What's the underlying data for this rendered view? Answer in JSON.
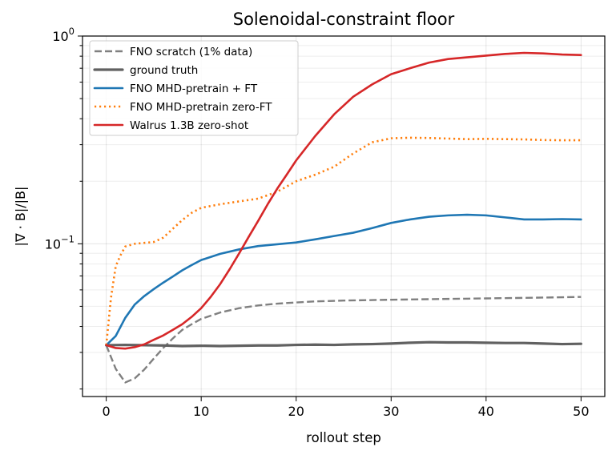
{
  "chart_data": {
    "type": "line",
    "title": "Solenoidal-constraint floor",
    "xlabel": "rollout step",
    "ylabel": "|∇ · B|/|B|",
    "xlim": [
      -2.5,
      52.5
    ],
    "ylim": [
      0.0184,
      1.0
    ],
    "yscale": "log",
    "grid": true,
    "legend_position": "top-left",
    "x_ticks": [
      {
        "value": 0,
        "label": "0"
      },
      {
        "value": 10,
        "label": "10"
      },
      {
        "value": 20,
        "label": "20"
      },
      {
        "value": 30,
        "label": "30"
      },
      {
        "value": 40,
        "label": "40"
      },
      {
        "value": 50,
        "label": "50"
      }
    ],
    "y_ticks": [
      {
        "value": 0.1,
        "base": "10",
        "exp": "−1"
      },
      {
        "value": 1.0,
        "base": "10",
        "exp": "0"
      }
    ],
    "series": [
      {
        "name": "FNO scratch (1% data)",
        "color": "#808080",
        "style": "dashed",
        "x": [
          0,
          1,
          2,
          3,
          4,
          5,
          6,
          7,
          8,
          9,
          10,
          12,
          14,
          16,
          18,
          20,
          22,
          25,
          30,
          35,
          40,
          45,
          50
        ],
        "y": [
          0.0325,
          0.025,
          0.0215,
          0.0225,
          0.0248,
          0.028,
          0.0315,
          0.035,
          0.0385,
          0.041,
          0.0435,
          0.0467,
          0.049,
          0.0505,
          0.0515,
          0.0522,
          0.0528,
          0.0533,
          0.0538,
          0.0542,
          0.0546,
          0.055,
          0.0555
        ]
      },
      {
        "name": "ground truth",
        "color": "#616161",
        "style": "solid-thick",
        "x": [
          0,
          2,
          4,
          6,
          8,
          10,
          12,
          14,
          16,
          18,
          20,
          22,
          24,
          26,
          28,
          30,
          32,
          34,
          36,
          38,
          40,
          42,
          44,
          46,
          48,
          50
        ],
        "y": [
          0.0325,
          0.0326,
          0.0325,
          0.0324,
          0.0322,
          0.0323,
          0.0322,
          0.0323,
          0.0324,
          0.0324,
          0.0326,
          0.0327,
          0.0326,
          0.0328,
          0.0329,
          0.0331,
          0.0334,
          0.0336,
          0.0335,
          0.0335,
          0.0334,
          0.0333,
          0.0333,
          0.0331,
          0.0329,
          0.033
        ]
      },
      {
        "name": "FNO MHD-pretrain + FT",
        "color": "#1f77b4",
        "style": "solid",
        "x": [
          0,
          1,
          2,
          3,
          4,
          5,
          6,
          7,
          8,
          9,
          10,
          12,
          14,
          16,
          18,
          20,
          22,
          24,
          26,
          28,
          30,
          32,
          34,
          36,
          38,
          40,
          42,
          44,
          46,
          48,
          50
        ],
        "y": [
          0.0325,
          0.036,
          0.044,
          0.051,
          0.056,
          0.0605,
          0.065,
          0.0695,
          0.0745,
          0.079,
          0.0835,
          0.0895,
          0.094,
          0.0975,
          0.0995,
          0.1015,
          0.105,
          0.109,
          0.113,
          0.119,
          0.126,
          0.131,
          0.135,
          0.137,
          0.138,
          0.137,
          0.134,
          0.131,
          0.131,
          0.1315,
          0.131
        ]
      },
      {
        "name": "FNO MHD-pretrain zero-FT",
        "color": "#ff7f0e",
        "style": "dotted",
        "x": [
          0,
          0.5,
          1,
          1.5,
          2,
          3,
          4,
          5,
          6,
          7,
          8,
          9,
          10,
          12,
          14,
          16,
          18,
          20,
          22,
          24,
          26,
          28,
          30,
          32,
          34,
          36,
          38,
          40,
          42,
          44,
          46,
          48,
          50
        ],
        "y": [
          0.0325,
          0.055,
          0.078,
          0.088,
          0.097,
          0.1,
          0.101,
          0.102,
          0.107,
          0.118,
          0.13,
          0.141,
          0.149,
          0.155,
          0.16,
          0.165,
          0.178,
          0.2,
          0.215,
          0.235,
          0.272,
          0.308,
          0.322,
          0.324,
          0.323,
          0.321,
          0.319,
          0.32,
          0.319,
          0.318,
          0.316,
          0.315,
          0.315
        ]
      },
      {
        "name": "Walrus 1.3B zero-shot",
        "color": "#d62728",
        "style": "solid",
        "x": [
          0,
          1,
          2,
          3,
          4,
          5,
          6,
          7,
          8,
          9,
          10,
          11,
          12,
          13,
          14,
          15,
          16,
          17,
          18,
          19,
          20,
          22,
          24,
          26,
          28,
          30,
          32,
          34,
          36,
          38,
          40,
          42,
          44,
          46,
          48,
          50
        ],
        "y": [
          0.0325,
          0.0315,
          0.0313,
          0.0318,
          0.0328,
          0.0345,
          0.0362,
          0.0385,
          0.041,
          0.0445,
          0.049,
          0.0555,
          0.064,
          0.0755,
          0.09,
          0.108,
          0.129,
          0.155,
          0.184,
          0.215,
          0.252,
          0.33,
          0.42,
          0.51,
          0.585,
          0.655,
          0.7,
          0.745,
          0.775,
          0.79,
          0.805,
          0.82,
          0.83,
          0.825,
          0.815,
          0.81
        ]
      }
    ]
  }
}
